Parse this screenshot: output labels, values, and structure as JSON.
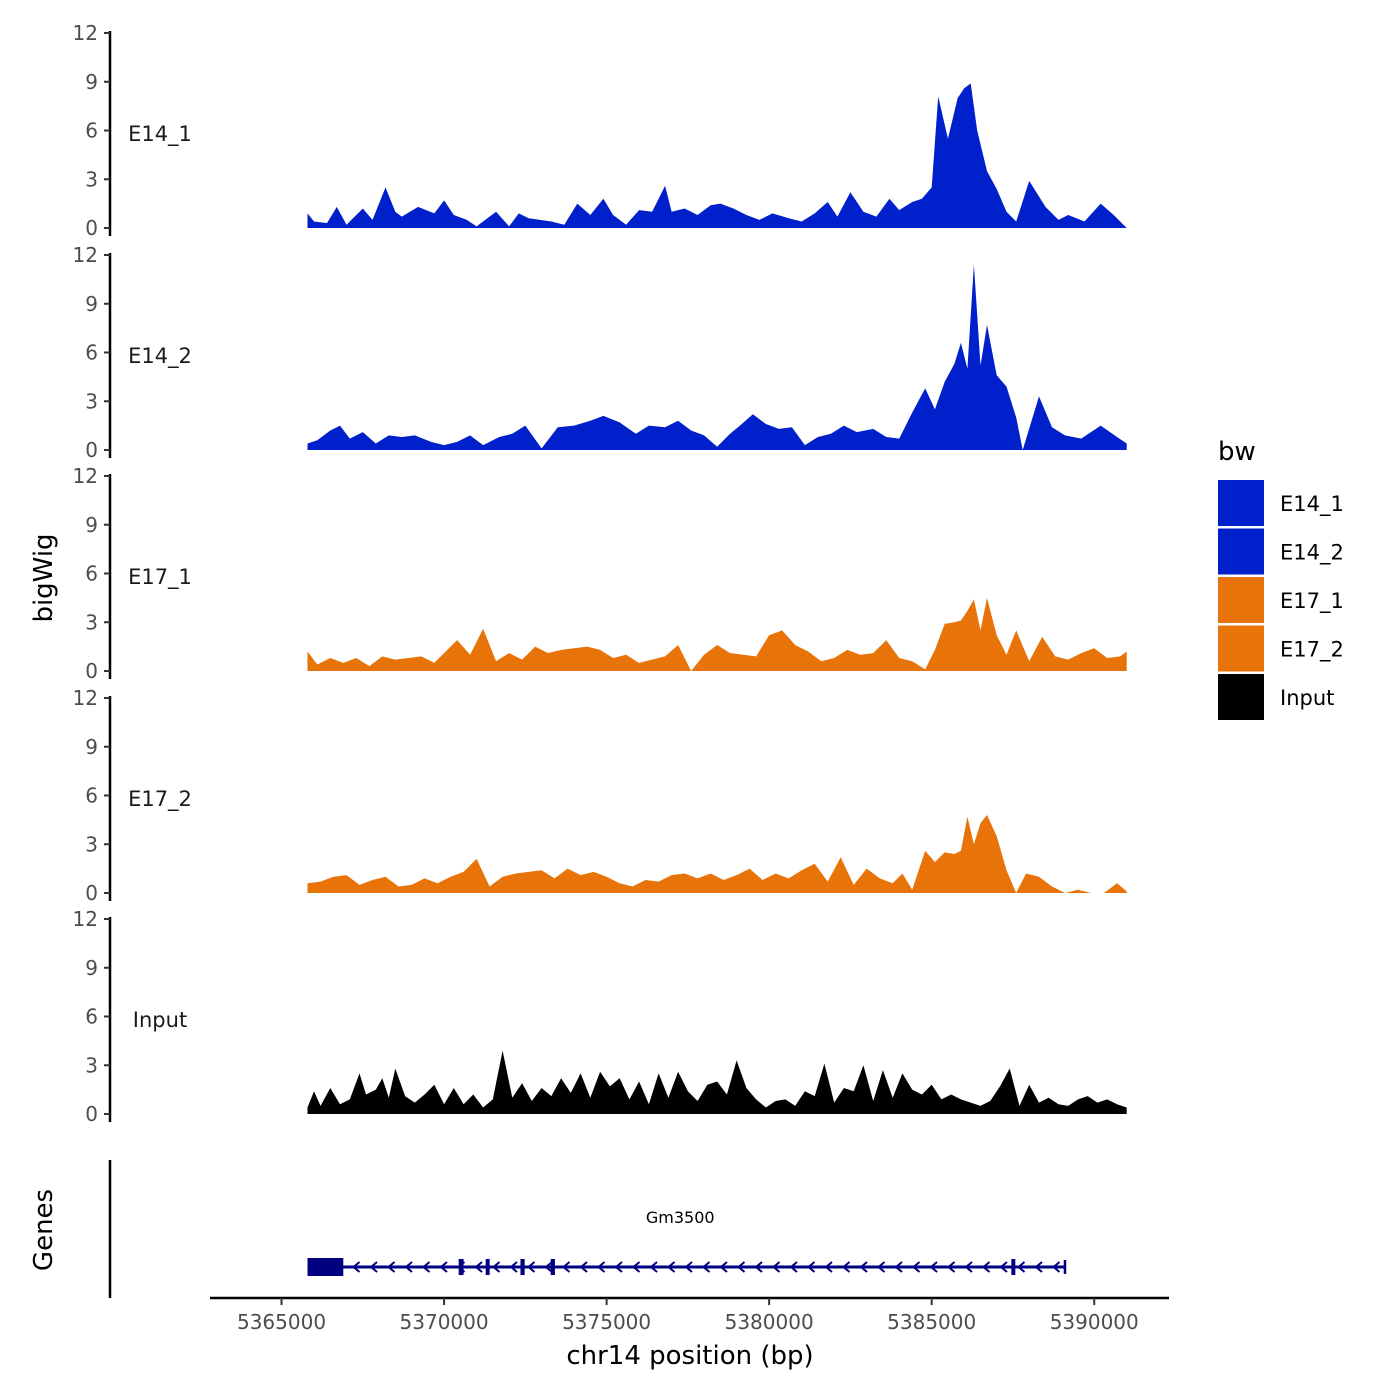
{
  "chart_data": {
    "type": "area",
    "chromosome": "chr14",
    "xlabel": "chr14 position (bp)",
    "ylabel": "bigWig",
    "genes_label": "Genes",
    "xlim": [
      5362800,
      5392300
    ],
    "ylim": [
      0,
      12
    ],
    "x_ticks": [
      5365000,
      5370000,
      5375000,
      5380000,
      5385000,
      5390000
    ],
    "x_tick_labels": [
      "5365000",
      "5370000",
      "5375000",
      "5380000",
      "5385000",
      "5390000"
    ],
    "y_ticks": [
      0,
      3,
      6,
      9,
      12
    ],
    "y_tick_labels": [
      "0",
      "3",
      "6",
      "9",
      "12"
    ],
    "legend": {
      "title": "bw",
      "placement": "right",
      "entries": [
        {
          "label": "E14_1",
          "color": "#0020CC"
        },
        {
          "label": "E14_2",
          "color": "#0020CC"
        },
        {
          "label": "E17_1",
          "color": "#E87308"
        },
        {
          "label": "E17_2",
          "color": "#E87308"
        },
        {
          "label": "Input",
          "color": "#000000"
        }
      ]
    },
    "tracks": [
      {
        "name": "E14_1",
        "color": "#0020CC",
        "x": [
          5365800,
          5366000,
          5366400,
          5366700,
          5367000,
          5367500,
          5367800,
          5368200,
          5368500,
          5368700,
          5369200,
          5369700,
          5370000,
          5370300,
          5370700,
          5371000,
          5371600,
          5372000,
          5372300,
          5372600,
          5373300,
          5373700,
          5374100,
          5374500,
          5374900,
          5375200,
          5375600,
          5376000,
          5376400,
          5376800,
          5377000,
          5377400,
          5377800,
          5378200,
          5378500,
          5378900,
          5379300,
          5379700,
          5380100,
          5380600,
          5381000,
          5381400,
          5381800,
          5382100,
          5382500,
          5382900,
          5383300,
          5383700,
          5384000,
          5384400,
          5384700,
          5385000,
          5385200,
          5385500,
          5385800,
          5386000,
          5386200,
          5386400,
          5386700,
          5387000,
          5387300,
          5387600,
          5388000,
          5388500,
          5388900,
          5389200,
          5389700,
          5390200,
          5390600,
          5391000
        ],
        "y": [
          0.9,
          0.4,
          0.3,
          1.3,
          0.2,
          1.2,
          0.5,
          2.5,
          1.0,
          0.7,
          1.3,
          0.9,
          1.7,
          0.8,
          0.5,
          0.1,
          1.0,
          0.1,
          0.9,
          0.6,
          0.4,
          0.2,
          1.5,
          0.8,
          1.8,
          0.8,
          0.2,
          1.1,
          1.0,
          2.6,
          1.0,
          1.2,
          0.8,
          1.4,
          1.5,
          1.2,
          0.8,
          0.5,
          0.9,
          0.6,
          0.4,
          0.9,
          1.6,
          0.7,
          2.2,
          1.0,
          0.7,
          1.8,
          1.1,
          1.6,
          1.8,
          2.5,
          8.1,
          5.5,
          8.0,
          8.6,
          8.9,
          6.0,
          3.5,
          2.4,
          1.0,
          0.4,
          2.9,
          1.3,
          0.5,
          0.8,
          0.4,
          1.5,
          0.8,
          0.0
        ]
      },
      {
        "name": "E14_2",
        "color": "#0020CC",
        "x": [
          5365800,
          5366100,
          5366500,
          5366800,
          5367100,
          5367500,
          5367900,
          5368300,
          5368700,
          5369100,
          5369600,
          5370000,
          5370400,
          5370800,
          5371200,
          5371700,
          5372100,
          5372500,
          5373000,
          5373500,
          5374000,
          5374500,
          5374900,
          5375400,
          5375900,
          5376300,
          5376800,
          5377200,
          5377600,
          5378000,
          5378400,
          5378800,
          5379100,
          5379500,
          5379900,
          5380300,
          5380700,
          5381100,
          5381500,
          5381900,
          5382300,
          5382700,
          5383200,
          5383600,
          5384000,
          5384400,
          5384800,
          5385100,
          5385400,
          5385700,
          5385900,
          5386100,
          5386300,
          5386500,
          5386700,
          5387000,
          5387300,
          5387600,
          5387800,
          5388300,
          5388700,
          5389100,
          5389600,
          5390200,
          5390700,
          5391000
        ],
        "y": [
          0.4,
          0.6,
          1.2,
          1.5,
          0.7,
          1.1,
          0.4,
          0.9,
          0.8,
          0.9,
          0.5,
          0.3,
          0.5,
          0.9,
          0.3,
          0.8,
          1.0,
          1.5,
          0.1,
          1.4,
          1.5,
          1.8,
          2.1,
          1.7,
          1.0,
          1.5,
          1.4,
          1.8,
          1.2,
          0.9,
          0.2,
          1.0,
          1.5,
          2.2,
          1.6,
          1.3,
          1.4,
          0.3,
          0.8,
          1.0,
          1.5,
          1.1,
          1.3,
          0.8,
          0.7,
          2.3,
          3.8,
          2.5,
          4.2,
          5.3,
          6.6,
          5.0,
          11.4,
          5.2,
          7.7,
          4.6,
          3.9,
          2.0,
          0.0,
          3.3,
          1.4,
          0.9,
          0.7,
          1.5,
          0.8,
          0.4
        ]
      },
      {
        "name": "E17_1",
        "color": "#E87308",
        "x": [
          5365800,
          5366100,
          5366500,
          5366900,
          5367300,
          5367700,
          5368100,
          5368500,
          5368900,
          5369300,
          5369700,
          5370100,
          5370400,
          5370800,
          5371200,
          5371600,
          5372000,
          5372400,
          5372800,
          5373200,
          5373600,
          5374000,
          5374400,
          5374800,
          5375200,
          5375600,
          5376000,
          5376400,
          5376800,
          5377200,
          5377600,
          5378000,
          5378400,
          5378800,
          5379200,
          5379600,
          5380000,
          5380400,
          5380800,
          5381200,
          5381600,
          5382000,
          5382400,
          5382800,
          5383200,
          5383600,
          5384000,
          5384400,
          5384800,
          5385100,
          5385400,
          5385700,
          5385900,
          5386100,
          5386300,
          5386500,
          5386700,
          5387000,
          5387300,
          5387600,
          5388000,
          5388400,
          5388800,
          5389200,
          5389600,
          5390000,
          5390400,
          5390800,
          5391000
        ],
        "y": [
          1.2,
          0.4,
          0.8,
          0.5,
          0.8,
          0.3,
          0.9,
          0.7,
          0.8,
          0.9,
          0.5,
          1.3,
          1.9,
          1.0,
          2.6,
          0.6,
          1.1,
          0.7,
          1.5,
          1.1,
          1.3,
          1.4,
          1.5,
          1.3,
          0.8,
          1.0,
          0.5,
          0.7,
          0.9,
          1.6,
          0.0,
          1.0,
          1.6,
          1.1,
          1.0,
          0.9,
          2.2,
          2.5,
          1.6,
          1.2,
          0.6,
          0.8,
          1.3,
          1.0,
          1.1,
          1.9,
          0.8,
          0.6,
          0.1,
          1.3,
          2.9,
          3.0,
          3.1,
          3.7,
          4.4,
          2.5,
          4.5,
          2.2,
          1.0,
          2.5,
          0.6,
          2.1,
          0.9,
          0.7,
          1.1,
          1.4,
          0.8,
          0.9,
          1.2
        ]
      },
      {
        "name": "E17_2",
        "color": "#E87308",
        "x": [
          5365800,
          5366200,
          5366600,
          5367000,
          5367400,
          5367800,
          5368200,
          5368600,
          5369000,
          5369400,
          5369800,
          5370200,
          5370600,
          5371000,
          5371400,
          5371800,
          5372200,
          5372600,
          5373000,
          5373400,
          5373800,
          5374200,
          5374600,
          5375000,
          5375400,
          5375800,
          5376200,
          5376600,
          5377000,
          5377400,
          5377800,
          5378200,
          5378600,
          5379000,
          5379400,
          5379800,
          5380200,
          5380600,
          5381000,
          5381400,
          5381800,
          5382200,
          5382600,
          5383000,
          5383400,
          5383800,
          5384100,
          5384400,
          5384800,
          5385100,
          5385400,
          5385700,
          5385900,
          5386100,
          5386300,
          5386500,
          5386700,
          5387000,
          5387300,
          5387600,
          5387900,
          5388300,
          5388700,
          5389100,
          5389500,
          5389900,
          5390300,
          5390700,
          5391000
        ],
        "y": [
          0.6,
          0.7,
          1.0,
          1.1,
          0.5,
          0.8,
          1.0,
          0.4,
          0.5,
          0.9,
          0.6,
          1.0,
          1.3,
          2.1,
          0.4,
          1.0,
          1.2,
          1.3,
          1.4,
          0.9,
          1.5,
          1.1,
          1.3,
          1.0,
          0.6,
          0.4,
          0.8,
          0.7,
          1.1,
          1.2,
          0.9,
          1.2,
          0.8,
          1.1,
          1.5,
          0.8,
          1.2,
          0.9,
          1.4,
          1.8,
          0.7,
          2.2,
          0.5,
          1.5,
          0.9,
          0.6,
          1.2,
          0.2,
          2.6,
          1.9,
          2.5,
          2.4,
          2.6,
          4.7,
          3.0,
          4.3,
          4.8,
          3.5,
          1.4,
          0.0,
          1.2,
          1.0,
          0.4,
          0.0,
          0.2,
          0.0,
          0.0,
          0.6,
          0.1
        ]
      },
      {
        "name": "Input",
        "color": "#000000",
        "x": [
          5365800,
          5366000,
          5366200,
          5366500,
          5366800,
          5367100,
          5367400,
          5367600,
          5367900,
          5368100,
          5368300,
          5368500,
          5368800,
          5369100,
          5369400,
          5369700,
          5370000,
          5370300,
          5370600,
          5370900,
          5371200,
          5371500,
          5371800,
          5372100,
          5372400,
          5372700,
          5373000,
          5373300,
          5373600,
          5373900,
          5374200,
          5374500,
          5374800,
          5375100,
          5375400,
          5375700,
          5376000,
          5376300,
          5376600,
          5376900,
          5377200,
          5377500,
          5377800,
          5378100,
          5378400,
          5378700,
          5379000,
          5379300,
          5379600,
          5379900,
          5380200,
          5380500,
          5380800,
          5381100,
          5381400,
          5381700,
          5382000,
          5382300,
          5382600,
          5382900,
          5383200,
          5383500,
          5383800,
          5384100,
          5384400,
          5384700,
          5385000,
          5385300,
          5385600,
          5385900,
          5386200,
          5386500,
          5386800,
          5387100,
          5387400,
          5387700,
          5388000,
          5388300,
          5388600,
          5388900,
          5389200,
          5389500,
          5389800,
          5390100,
          5390400,
          5390700,
          5391000
        ],
        "y": [
          0.4,
          1.4,
          0.5,
          1.6,
          0.6,
          0.9,
          2.5,
          1.2,
          1.5,
          2.2,
          1.0,
          2.8,
          1.1,
          0.7,
          1.2,
          1.8,
          0.6,
          1.6,
          0.6,
          1.2,
          0.4,
          0.9,
          3.9,
          1.0,
          1.9,
          0.8,
          1.6,
          1.1,
          2.2,
          1.3,
          2.5,
          1.0,
          2.6,
          1.7,
          2.2,
          0.9,
          2.0,
          0.6,
          2.5,
          1.0,
          2.6,
          1.4,
          0.8,
          1.8,
          2.0,
          1.2,
          3.3,
          1.6,
          0.9,
          0.4,
          0.8,
          0.9,
          0.5,
          1.4,
          1.1,
          3.1,
          0.7,
          1.6,
          1.4,
          3.0,
          0.8,
          2.7,
          1.0,
          2.5,
          1.5,
          1.2,
          1.8,
          0.9,
          1.2,
          0.9,
          0.7,
          0.5,
          0.8,
          1.7,
          2.8,
          0.5,
          1.8,
          0.7,
          1.0,
          0.6,
          0.5,
          0.9,
          1.1,
          0.7,
          0.9,
          0.6,
          0.4
        ]
      }
    ],
    "genes": [
      {
        "name": "Gm3500",
        "strand": "-",
        "start": 5365800,
        "end": 5389100,
        "exons": [
          [
            5365800,
            5366900
          ],
          [
            5370450,
            5370600
          ],
          [
            5371280,
            5371380
          ],
          [
            5372350,
            5372480
          ],
          [
            5373280,
            5373410
          ],
          [
            5387450,
            5387550
          ]
        ]
      }
    ]
  }
}
